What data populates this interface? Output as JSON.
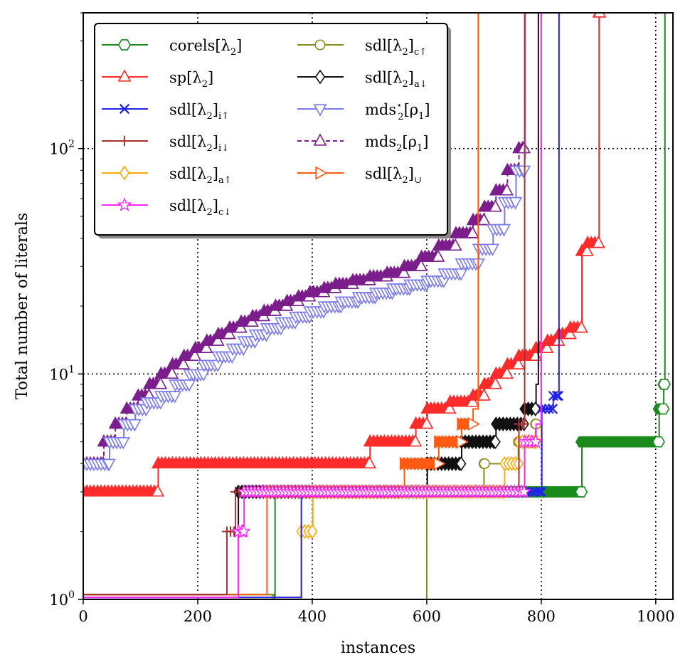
{
  "chart_data": {
    "type": "line",
    "title": "",
    "xlabel": "instances",
    "ylabel": "Total number of literals",
    "xlim": [
      0,
      1030
    ],
    "ylim": [
      1,
      400
    ],
    "yscale": "log",
    "grid": true,
    "legend_position": "top-left",
    "x_ticks": [
      {
        "value": 0,
        "label": "0"
      },
      {
        "value": 200,
        "label": "200"
      },
      {
        "value": 400,
        "label": "400"
      },
      {
        "value": 600,
        "label": "600"
      },
      {
        "value": 800,
        "label": "800"
      },
      {
        "value": 1000,
        "label": "1000"
      }
    ],
    "y_ticks": [
      {
        "value": 1,
        "base": "10",
        "exp": "0"
      },
      {
        "value": 10,
        "base": "10",
        "exp": "1"
      },
      {
        "value": 100,
        "base": "10",
        "exp": "2"
      }
    ],
    "series": [
      {
        "name": "mds2[ρ1]",
        "label_main": "mds",
        "label_sub": "2",
        "label_sup": "",
        "label_rest": "[ρ",
        "label_sub2": "1",
        "label_end": "]",
        "color": "#7b1e8c",
        "dash": "6,4",
        "marker": "triangle-up",
        "filled": true,
        "x": [
          0,
          35,
          36,
          55,
          56,
          75,
          76,
          95,
          96,
          115,
          116,
          135,
          136,
          155,
          156,
          175,
          176,
          195,
          196,
          215,
          216,
          235,
          236,
          255,
          256,
          275,
          276,
          295,
          296,
          315,
          316,
          335,
          336,
          355,
          356,
          375,
          376,
          395,
          396,
          420,
          421,
          440,
          441,
          470,
          471,
          500,
          501,
          530,
          531,
          560,
          561,
          590,
          591,
          620,
          621,
          650,
          651,
          680,
          681,
          700,
          701,
          720,
          721,
          740,
          741,
          760,
          761,
          770,
          771,
          772
        ],
        "y": [
          4,
          4,
          5,
          5,
          6,
          6,
          7,
          7,
          8,
          8,
          9,
          9,
          10,
          10,
          11,
          11,
          12,
          12,
          13,
          13,
          14,
          14,
          15,
          15,
          16,
          16,
          17,
          17,
          18,
          18,
          19,
          19,
          20,
          20,
          21,
          21,
          22,
          22,
          23,
          23,
          24,
          24,
          25,
          25,
          26,
          26,
          27,
          27,
          28,
          28,
          30,
          30,
          33,
          33,
          37,
          37,
          42,
          42,
          48,
          48,
          55,
          55,
          65,
          65,
          80,
          80,
          100,
          100,
          125,
          400
        ]
      },
      {
        "name": "mds*2[ρ1]",
        "label_main": "mds",
        "label_sub": "2",
        "label_sup": "⋆",
        "label_rest": "[ρ",
        "label_sub2": "1",
        "label_end": "]",
        "color": "#7b7bf0",
        "dash": "",
        "marker": "triangle-down",
        "filled": false,
        "x": [
          0,
          45,
          46,
          70,
          71,
          90,
          91,
          110,
          111,
          135,
          136,
          160,
          161,
          185,
          186,
          210,
          211,
          235,
          236,
          260,
          261,
          280,
          281,
          300,
          301,
          320,
          321,
          345,
          346,
          370,
          371,
          395,
          396,
          420,
          421,
          450,
          451,
          480,
          481,
          510,
          511,
          540,
          541,
          570,
          571,
          600,
          601,
          630,
          631,
          660,
          661,
          690,
          691,
          715,
          716,
          735,
          736,
          755,
          756,
          770,
          771,
          772
        ],
        "y": [
          4,
          4,
          5,
          5,
          6,
          6,
          7,
          7,
          7.5,
          7.5,
          8,
          8,
          9,
          9,
          10,
          10,
          11,
          11,
          12,
          12,
          13,
          13,
          14,
          14,
          15,
          15,
          16,
          16,
          17,
          17,
          18,
          18,
          19,
          19,
          20,
          20,
          21,
          21,
          22,
          22,
          23,
          23,
          24,
          24,
          25,
          25,
          26,
          26,
          28,
          28,
          31,
          31,
          36,
          36,
          44,
          44,
          58,
          58,
          80,
          80,
          90,
          400
        ]
      },
      {
        "name": "sp[λ2]",
        "label_main": "sp[λ",
        "label_sub": "2",
        "label_sup": "",
        "label_rest": "]",
        "label_sub2": "",
        "label_end": "",
        "color": "#ff2a2a",
        "dash": "",
        "marker": "triangle-up",
        "filled": true,
        "x": [
          0,
          130,
          131,
          500,
          501,
          580,
          581,
          600,
          601,
          640,
          641,
          680,
          681,
          700,
          701,
          720,
          721,
          740,
          741,
          760,
          761,
          790,
          791,
          810,
          811,
          830,
          831,
          850,
          851,
          870,
          871,
          880,
          881,
          900,
          901,
          902
        ],
        "y": [
          3,
          3,
          4,
          4,
          5,
          5,
          6,
          6,
          7,
          7,
          7.5,
          7.5,
          8,
          8,
          9,
          9,
          10,
          10,
          11,
          11,
          12,
          12,
          13,
          13,
          14,
          14,
          15,
          15,
          16,
          16,
          35,
          35,
          38,
          38,
          400,
          400
        ]
      },
      {
        "name": "corels[λ2]",
        "label_main": "corels[λ",
        "label_sub": "2",
        "label_sup": "",
        "label_rest": "]",
        "label_sub2": "",
        "label_end": "",
        "color": "#1a8a1a",
        "dash": "",
        "marker": "hexagon",
        "filled": true,
        "x": [
          0,
          333,
          334,
          335,
          600,
          601,
          870,
          871,
          1005,
          1006,
          1013,
          1014,
          1015,
          1016
        ],
        "y": [
          1.05,
          1.05,
          1,
          3,
          3,
          3,
          3,
          5,
          5,
          7,
          7,
          9,
          9,
          400
        ]
      },
      {
        "name": "sdl[λ2]c↑",
        "label_main": "sdl[λ",
        "label_sub": "2",
        "label_sup": "",
        "label_rest": "]",
        "label_sub2": "c↑",
        "label_end": "",
        "color": "#8a8a1e",
        "dash": "",
        "marker": "circle",
        "filled": true,
        "x": [
          0,
          330,
          331,
          600,
          601,
          650,
          651,
          700,
          701,
          760,
          761,
          790,
          791,
          800
        ],
        "y": [
          1.05,
          1.05,
          1,
          3,
          3,
          3,
          3,
          4,
          4,
          5,
          5,
          6,
          6,
          400
        ]
      },
      {
        "name": "sdl[λ2]a↓",
        "label_main": "sdl[λ",
        "label_sub": "2",
        "label_sup": "",
        "label_rest": "]",
        "label_sub2": "a↓",
        "label_end": "",
        "color": "#111111",
        "dash": "",
        "marker": "diamond",
        "filled": true,
        "x": [
          0,
          270,
          271,
          600,
          601,
          660,
          661,
          720,
          721,
          770,
          771,
          790,
          791,
          795
        ],
        "y": [
          1.05,
          1.05,
          3,
          3,
          4,
          4,
          5,
          5,
          6,
          6,
          7,
          7,
          9,
          400
        ]
      },
      {
        "name": "sdl[λ2]a↑",
        "label_main": "sdl[λ",
        "label_sub": "2",
        "label_sup": "",
        "label_rest": "]",
        "label_sub2": "a↑",
        "label_end": "",
        "color": "#ffaa00",
        "dash": "",
        "marker": "diamond",
        "filled": false,
        "x": [
          0,
          380,
          381,
          400,
          401,
          600,
          601,
          735,
          736,
          760,
          761,
          790,
          791,
          800
        ],
        "y": [
          1.02,
          1.02,
          2,
          2,
          3,
          3,
          3,
          3,
          4,
          4,
          5,
          5,
          5,
          400
        ]
      },
      {
        "name": "sdl[λ2]∪",
        "label_main": "sdl[λ",
        "label_sub": "2",
        "label_sup": "",
        "label_rest": "]",
        "label_sub2": "∪",
        "label_end": "",
        "color": "#ff5a14",
        "dash": "",
        "marker": "triangle-right",
        "filled": true,
        "x": [
          0,
          320,
          321,
          560,
          561,
          620,
          621,
          660,
          661,
          680,
          681,
          690
        ],
        "y": [
          1.05,
          1.05,
          3,
          3,
          4,
          4,
          5,
          5,
          6,
          6,
          7,
          400
        ]
      },
      {
        "name": "sdl[λ2]i↑",
        "label_main": "sdl[λ",
        "label_sub": "2",
        "label_sup": "",
        "label_rest": "]",
        "label_sub2": "i↑",
        "label_end": "",
        "color": "#2222ee",
        "dash": "",
        "marker": "x",
        "filled": true,
        "x": [
          0,
          380,
          381,
          800,
          801,
          820,
          821,
          830,
          831
        ],
        "y": [
          1.02,
          1.02,
          3,
          3,
          7,
          7,
          8,
          8,
          400
        ]
      },
      {
        "name": "sdl[λ2]i↓",
        "label_main": "sdl[λ",
        "label_sub": "2",
        "label_sup": "",
        "label_rest": "]",
        "label_sub2": "i↓",
        "label_end": "",
        "color": "#a83232",
        "dash": "",
        "marker": "plus",
        "filled": true,
        "x": [
          0,
          250,
          251,
          265,
          266,
          760,
          761,
          770,
          771
        ],
        "y": [
          1.05,
          1.05,
          2,
          2,
          3,
          3,
          6,
          6,
          400
        ]
      },
      {
        "name": "sdl[λ2]c↓",
        "label_main": "sdl[λ",
        "label_sub": "2",
        "label_sup": "",
        "label_rest": "]",
        "label_sub2": "c↓",
        "label_end": "",
        "color": "#ff22ff",
        "dash": "",
        "marker": "star",
        "filled": false,
        "x": [
          0,
          270,
          271,
          280,
          281,
          770,
          771,
          790,
          791,
          800
        ],
        "y": [
          1.02,
          1.02,
          2,
          2,
          3,
          3,
          5,
          5,
          6,
          400
        ]
      }
    ],
    "legend_order": [
      "corels[λ2]",
      "sp[λ2]",
      "sdl[λ2]i↑",
      "sdl[λ2]i↓",
      "sdl[λ2]a↑",
      "sdl[λ2]c↓",
      "sdl[λ2]c↑",
      "sdl[λ2]a↓",
      "mds*2[ρ1]",
      "mds2[ρ1]",
      "sdl[λ2]∪"
    ]
  }
}
